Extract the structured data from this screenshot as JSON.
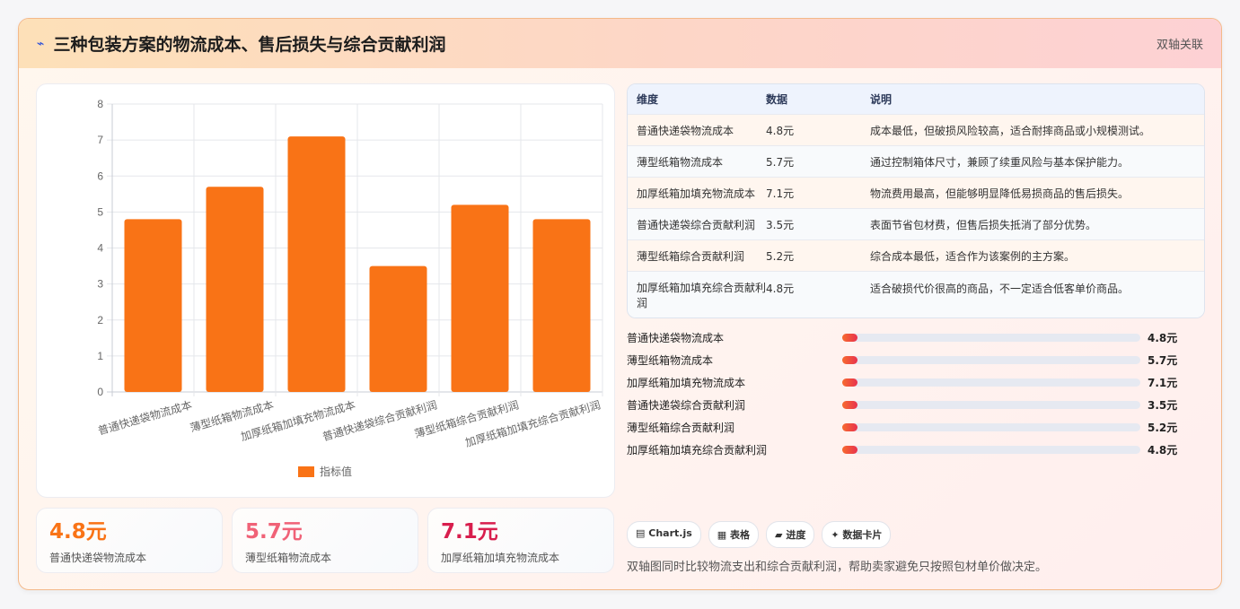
{
  "header": {
    "icon": "chart-line-icon",
    "title": "三种包装方案的物流成本、售后损失与综合贡献利润",
    "tag": "双轴关联"
  },
  "chart_data": {
    "type": "bar",
    "categories": [
      "普通快递袋物流成本",
      "薄型纸箱物流成本",
      "加厚纸箱加填充物流成本",
      "普通快递袋综合贡献利润",
      "薄型纸箱综合贡献利润",
      "加厚纸箱加填充综合贡献利润"
    ],
    "series": [
      {
        "name": "指标值",
        "values": [
          4.8,
          5.7,
          7.1,
          3.5,
          5.2,
          4.8
        ],
        "color": "#f97316"
      }
    ],
    "ylim": [
      0,
      8
    ],
    "yticks": [
      "0",
      "1",
      "2",
      "3",
      "4",
      "5",
      "6",
      "7",
      "8"
    ],
    "grid": true,
    "legend": "bottom"
  },
  "kpis": [
    {
      "value": "4.8元",
      "label": "普通快递袋物流成本",
      "color": "#f97316"
    },
    {
      "value": "5.7元",
      "label": "薄型纸箱物流成本",
      "color": "#f06277"
    },
    {
      "value": "7.1元",
      "label": "加厚纸箱加填充物流成本",
      "color": "#d81e4d"
    }
  ],
  "table": {
    "headers": [
      "维度",
      "数据",
      "说明"
    ],
    "rows": [
      [
        "普通快递袋物流成本",
        "4.8元",
        "成本最低，但破损风险较高，适合耐摔商品或小规模测试。"
      ],
      [
        "薄型纸箱物流成本",
        "5.7元",
        "通过控制箱体尺寸，兼顾了续重风险与基本保护能力。"
      ],
      [
        "加厚纸箱加填充物流成本",
        "7.1元",
        "物流费用最高，但能够明显降低易损商品的售后损失。"
      ],
      [
        "普通快递袋综合贡献利润",
        "3.5元",
        "表面节省包材费，但售后损失抵消了部分优势。"
      ],
      [
        "薄型纸箱综合贡献利润",
        "5.2元",
        "综合成本最低，适合作为该案例的主方案。"
      ],
      [
        "加厚纸箱加填充综合贡献利润",
        "4.8元",
        "适合破损代价很高的商品，不一定适合低客单价商品。"
      ]
    ]
  },
  "progress": [
    {
      "label": "普通快递袋物流成本",
      "value": "4.8元",
      "fraction": 0.05
    },
    {
      "label": "薄型纸箱物流成本",
      "value": "5.7元",
      "fraction": 0.05
    },
    {
      "label": "加厚纸箱加填充物流成本",
      "value": "7.1元",
      "fraction": 0.05
    },
    {
      "label": "普通快递袋综合贡献利润",
      "value": "3.5元",
      "fraction": 0.05
    },
    {
      "label": "薄型纸箱综合贡献利润",
      "value": "5.2元",
      "fraction": 0.05
    },
    {
      "label": "加厚纸箱加填充综合贡献利润",
      "value": "4.8元",
      "fraction": 0.05
    }
  ],
  "chips": [
    {
      "icon": "▤",
      "label": "Chart.js"
    },
    {
      "icon": "▦",
      "label": "表格"
    },
    {
      "icon": "▰",
      "label": "进度"
    },
    {
      "icon": "✦",
      "label": "数据卡片"
    }
  ],
  "footer_note": "双轴图同时比较物流支出和综合贡献利润，帮助卖家避免只按照包材单价做决定。"
}
